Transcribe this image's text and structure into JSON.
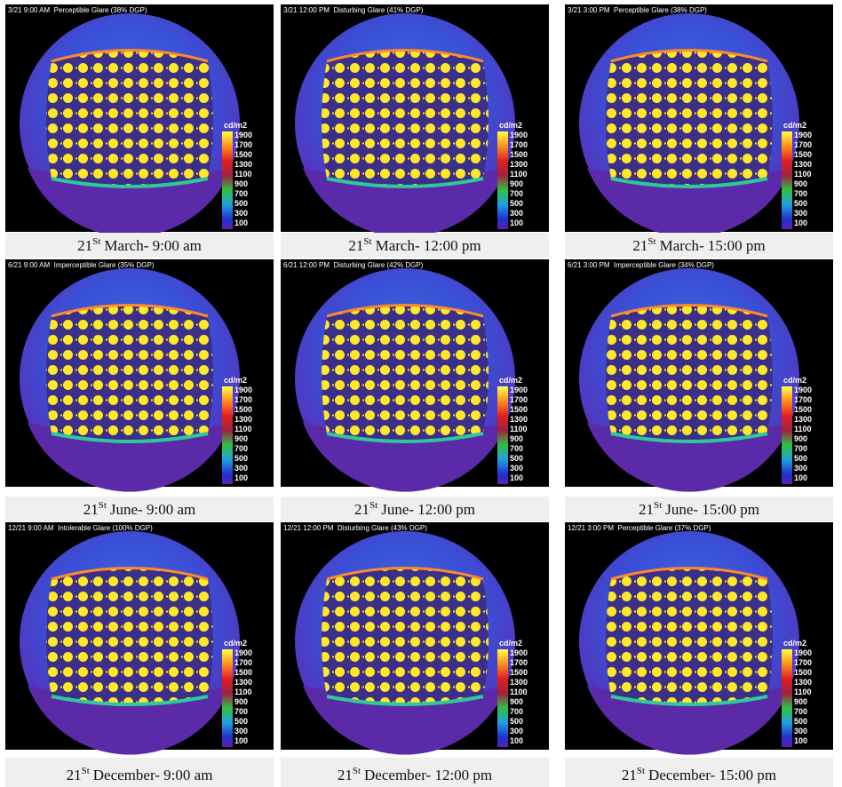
{
  "panels": [
    {
      "header": "3/21 9:00 AM  Perceptible Glare (38% DGP)",
      "caption": {
        "day": "21",
        "suffix": "St",
        "text": "March- 9:00 am"
      }
    },
    {
      "header": "3/21 12:00 PM  Disturbing Glare (41% DGP)",
      "caption": {
        "day": "21",
        "suffix": "St",
        "text": "March- 12:00 pm"
      }
    },
    {
      "header": "3/21 3:00 PM  Perceptible Glare (38% DGP)",
      "caption": {
        "day": "21",
        "suffix": "St",
        "text": "March- 15:00 pm"
      }
    },
    {
      "header": "6/21 9:00 AM  Imperceptible Glare (35% DGP)",
      "caption": {
        "day": "21",
        "suffix": "St",
        "text": "June- 9:00 am"
      }
    },
    {
      "header": "6/21 12:00 PM  Disturbing Glare (42% DGP)",
      "caption": {
        "day": "21",
        "suffix": "St",
        "text": "June- 12:00 pm"
      }
    },
    {
      "header": "6/21 3:00 PM  Imperceptible Glare (34% DGP)",
      "caption": {
        "day": "21",
        "suffix": "St",
        "text": "June- 15:00 pm"
      }
    },
    {
      "header": "12/21 9:00 AM  Intolerable Glare (100% DGP)",
      "caption": {
        "day": "21",
        "suffix": "St",
        "text": "December- 9:00 am"
      }
    },
    {
      "header": "12/21 12:00 PM  Disturbing Glare (43% DGP)",
      "caption": {
        "day": "21",
        "suffix": "St",
        "text": "December- 12:00 pm"
      }
    },
    {
      "header": "12/21 3:00 PM  Perceptible Glare (37% DGP)",
      "caption": {
        "day": "21",
        "suffix": "St",
        "text": "December- 15:00 pm"
      }
    }
  ],
  "scale": {
    "unit": "cd/m2",
    "ticks": [
      1900,
      1700,
      1500,
      1300,
      1100,
      900,
      700,
      500,
      300,
      100
    ]
  }
}
